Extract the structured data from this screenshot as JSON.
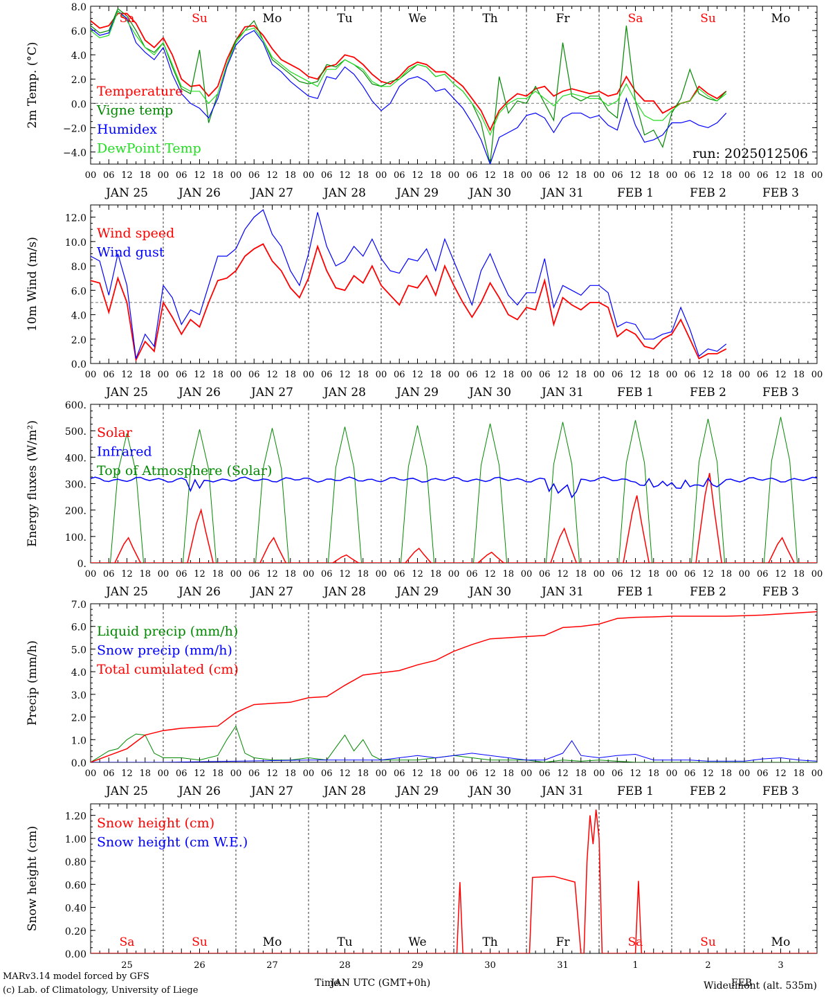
{
  "colors": {
    "red": "#ff0000",
    "green": "#008800",
    "blue": "#0000ff",
    "lightgreen": "#22dd22",
    "black": "#000000"
  },
  "days_of_week": [
    "Sa",
    "Su",
    "Mo",
    "Tu",
    "We",
    "Th",
    "Fr",
    "Sa",
    "Su",
    "Mo"
  ],
  "weekend_days": [
    "Sa",
    "Su"
  ],
  "date_labels": [
    "JAN 25",
    "JAN 26",
    "JAN 27",
    "JAN 28",
    "JAN 29",
    "JAN 30",
    "JAN 31",
    "FEB  1",
    "FEB  2",
    "FEB  3"
  ],
  "hour_ticks": [
    "00",
    "06",
    "12",
    "18"
  ],
  "last_hour_tick": "00",
  "run_label": "run: 2025012506",
  "footer": {
    "model": "MARv3.14 model forced by GFS",
    "copyright": "(c) Lab. of Climatology, University of Liege",
    "xlabel_time": "Time",
    "xlabel_utc": "JAN UTC (GMT+0h)",
    "xlabel_feb": "FEB",
    "station": "Wideumont (alt. 535m)",
    "day_numbers": [
      "25",
      "26",
      "27",
      "28",
      "29",
      "30",
      "31",
      "1",
      "2",
      "3"
    ]
  },
  "chart_data": [
    {
      "type": "line",
      "ylabel": "2m Temp. (°C)",
      "ylim": [
        -5,
        8
      ],
      "yticks": [
        "8.0",
        "6.0",
        "4.0",
        "2.0",
        "0.0",
        "−2.0",
        "−4.0"
      ],
      "ytick_values": [
        8,
        6,
        4,
        2,
        0,
        -2,
        -4
      ],
      "hline": 0,
      "x_hours": [
        0,
        3,
        6,
        9,
        12,
        15,
        18,
        21,
        24,
        27,
        30,
        33,
        36,
        39,
        42,
        45,
        48,
        51,
        54,
        57,
        60,
        63,
        66,
        69,
        72,
        75,
        78,
        81,
        84,
        87,
        90,
        93,
        96,
        99,
        102,
        105,
        108,
        111,
        114,
        117,
        120,
        123,
        126,
        129,
        132,
        135,
        138,
        141,
        144,
        147,
        150,
        153,
        156,
        159,
        162,
        165,
        168,
        171,
        174,
        177,
        180,
        183,
        186,
        189,
        192,
        195,
        198,
        201,
        204,
        207,
        210,
        213,
        216,
        219,
        222,
        225,
        228,
        231,
        234,
        237,
        240
      ],
      "legend": [
        "Temperature",
        "Vigne temp",
        "Humidex",
        "DewPoint Temp"
      ],
      "series": [
        {
          "name": "Temperature",
          "color": "red",
          "values": [
            6.8,
            6.2,
            6.4,
            7.4,
            7.4,
            6.6,
            5.2,
            4.6,
            5.4,
            4.0,
            2.0,
            1.4,
            1.5,
            0.6,
            1.4,
            3.6,
            5.2,
            6.3,
            6.4,
            5.6,
            4.5,
            3.6,
            3.2,
            2.8,
            2.2,
            2.0,
            3.0,
            3.2,
            4.0,
            3.8,
            3.2,
            2.4,
            1.8,
            1.6,
            2.2,
            3.0,
            3.4,
            3.2,
            2.6,
            2.6,
            2.0,
            1.4,
            0.4,
            -0.6,
            -2.2,
            -0.6,
            0.2,
            0.8,
            0.6,
            1.2,
            1.4,
            0.6,
            1.0,
            1.2,
            1.0,
            0.8,
            1.0,
            0.6,
            0.8,
            2.2,
            1.0,
            0.2,
            0.2,
            -0.8,
            -0.4,
            0.0,
            0.2,
            1.4,
            0.8,
            0.4,
            1.0
          ]
        },
        {
          "name": "Vigne temp",
          "color": "green",
          "values": [
            6.4,
            5.8,
            6.0,
            7.8,
            7.2,
            6.0,
            4.6,
            4.2,
            5.0,
            3.0,
            1.2,
            0.8,
            4.4,
            -1.6,
            0.8,
            3.2,
            5.2,
            6.0,
            6.8,
            5.2,
            3.6,
            3.0,
            2.4,
            1.8,
            1.6,
            1.8,
            3.2,
            3.0,
            3.6,
            3.2,
            2.6,
            1.6,
            1.4,
            1.8,
            2.0,
            2.6,
            3.2,
            3.0,
            2.2,
            2.4,
            1.6,
            1.0,
            0.0,
            -1.6,
            -5.0,
            2.2,
            -0.8,
            0.2,
            0.0,
            1.4,
            0.0,
            -1.4,
            5.0,
            0.6,
            0.2,
            0.6,
            0.6,
            -0.6,
            -1.2,
            6.4,
            0.2,
            -2.6,
            -2.2,
            -3.6,
            -0.8,
            0.4,
            2.8,
            0.8,
            0.4,
            0.2,
            1.0
          ]
        },
        {
          "name": "Humidex",
          "color": "blue",
          "values": [
            6.2,
            5.6,
            5.8,
            7.6,
            7.0,
            5.0,
            4.2,
            3.6,
            4.6,
            2.4,
            0.8,
            0.0,
            -0.4,
            -1.2,
            0.4,
            3.0,
            4.8,
            5.6,
            6.0,
            5.0,
            3.2,
            2.6,
            1.8,
            1.2,
            0.6,
            0.4,
            2.2,
            2.0,
            3.0,
            2.4,
            1.4,
            0.2,
            -0.6,
            0.0,
            1.4,
            2.0,
            2.2,
            1.8,
            1.0,
            1.2,
            0.4,
            -0.4,
            -1.6,
            -3.0,
            -5.0,
            -2.8,
            -2.4,
            -2.0,
            -1.0,
            -0.8,
            -1.2,
            -2.4,
            -1.2,
            -0.8,
            -0.8,
            -1.2,
            -1.0,
            -1.8,
            -2.2,
            0.4,
            -1.8,
            -3.2,
            -3.0,
            -2.6,
            -1.6,
            -1.6,
            -1.4,
            -1.8,
            -2.0,
            -1.6,
            -0.8
          ]
        },
        {
          "name": "DewPoint Temp",
          "color": "lightgreen",
          "values": [
            6.0,
            5.4,
            5.6,
            7.6,
            6.8,
            5.6,
            4.6,
            4.0,
            5.0,
            3.2,
            1.4,
            1.0,
            1.0,
            0.0,
            0.8,
            3.2,
            5.0,
            6.0,
            6.2,
            5.2,
            3.8,
            3.2,
            2.6,
            2.2,
            1.8,
            1.4,
            2.8,
            2.8,
            3.6,
            3.2,
            2.8,
            1.8,
            1.4,
            1.4,
            2.0,
            2.8,
            3.2,
            3.0,
            2.2,
            2.4,
            1.6,
            1.0,
            0.0,
            -1.0,
            -2.6,
            -0.8,
            0.0,
            0.4,
            0.4,
            1.0,
            0.4,
            -0.2,
            0.6,
            0.8,
            0.6,
            0.4,
            0.4,
            -0.2,
            0.2,
            1.6,
            0.2,
            -1.0,
            -1.4,
            -1.4,
            -0.6,
            0.0,
            0.2,
            1.2,
            0.6,
            0.2,
            0.8
          ]
        }
      ]
    },
    {
      "type": "line",
      "ylabel": "10m Wind (m/s)",
      "ylim": [
        0,
        13
      ],
      "yticks": [
        "12.0",
        "10.0",
        "8.0",
        "6.0",
        "4.0",
        "2.0",
        "0.0"
      ],
      "ytick_values": [
        12,
        10,
        8,
        6,
        4,
        2,
        0
      ],
      "hline": 5,
      "x_hours": [
        0,
        3,
        6,
        9,
        12,
        15,
        18,
        21,
        24,
        27,
        30,
        33,
        36,
        39,
        42,
        45,
        48,
        51,
        54,
        57,
        60,
        63,
        66,
        69,
        72,
        75,
        78,
        81,
        84,
        87,
        90,
        93,
        96,
        99,
        102,
        105,
        108,
        111,
        114,
        117,
        120,
        123,
        126,
        129,
        132,
        135,
        138,
        141,
        144,
        147,
        150,
        153,
        156,
        159,
        162,
        165,
        168,
        171,
        174,
        177,
        180,
        183,
        186,
        189,
        192,
        195,
        198,
        201,
        204,
        207,
        210,
        213,
        216,
        219,
        222,
        225,
        228,
        231,
        234,
        237,
        240
      ],
      "legend": [
        "Wind speed",
        "Wind gust"
      ],
      "series": [
        {
          "name": "Wind speed",
          "color": "red",
          "values": [
            6.8,
            6.6,
            4.2,
            7.0,
            5.0,
            0.3,
            1.8,
            1.0,
            5.0,
            3.8,
            2.4,
            3.6,
            3.0,
            5.0,
            6.8,
            7.0,
            7.6,
            8.8,
            9.4,
            9.8,
            8.4,
            7.6,
            6.2,
            5.4,
            7.0,
            9.6,
            7.6,
            6.2,
            6.0,
            7.2,
            6.6,
            8.0,
            6.4,
            5.6,
            4.8,
            6.4,
            6.2,
            7.2,
            5.6,
            8.0,
            6.4,
            5.0,
            3.8,
            5.0,
            6.6,
            5.4,
            4.0,
            3.6,
            4.6,
            4.4,
            6.8,
            3.2,
            5.4,
            4.8,
            4.4,
            5.0,
            5.0,
            4.6,
            2.2,
            2.8,
            2.4,
            1.4,
            1.2,
            2.0,
            2.4,
            3.6,
            2.0,
            0.4,
            0.8,
            0.8,
            1.2
          ]
        },
        {
          "name": "Wind gust",
          "color": "blue",
          "values": [
            8.8,
            8.4,
            5.6,
            9.0,
            6.4,
            0.4,
            2.4,
            1.4,
            6.4,
            5.4,
            3.2,
            4.4,
            4.0,
            6.4,
            8.8,
            8.8,
            9.4,
            11.0,
            12.0,
            12.6,
            10.6,
            9.6,
            7.6,
            6.4,
            9.0,
            12.4,
            9.6,
            8.0,
            8.4,
            9.6,
            8.8,
            10.2,
            8.6,
            7.6,
            7.4,
            8.6,
            8.4,
            9.4,
            7.6,
            10.2,
            8.4,
            6.6,
            4.8,
            7.6,
            9.0,
            7.2,
            5.6,
            4.8,
            5.8,
            5.8,
            8.6,
            4.6,
            6.4,
            6.0,
            5.6,
            6.4,
            6.4,
            5.8,
            3.0,
            3.4,
            3.2,
            2.0,
            2.0,
            2.4,
            2.6,
            4.6,
            2.8,
            0.6,
            1.2,
            1.0,
            1.6
          ]
        }
      ]
    },
    {
      "type": "line",
      "ylabel": "Energy fluxes (W/m²)",
      "ylim": [
        0,
        600
      ],
      "yticks": [
        "600.",
        "500.",
        "400.",
        "300.",
        "200.",
        "100.",
        "0."
      ],
      "ytick_values": [
        600,
        500,
        400,
        300,
        200,
        100,
        0
      ],
      "legend": [
        "Solar",
        "Infrared",
        "Top of Atmosphere (Solar)"
      ],
      "toa_peaks": [
        490,
        505,
        510,
        515,
        520,
        527,
        533,
        540,
        545,
        552
      ],
      "solar_peaks": [
        95,
        200,
        95,
        30,
        55,
        40,
        130,
        255,
        340,
        95
      ],
      "infrared_base": 315
    },
    {
      "type": "line",
      "ylabel": "Precip (mm/h)",
      "ylim": [
        0,
        7
      ],
      "yticks": [
        "7.0",
        "6.0",
        "5.0",
        "4.0",
        "3.0",
        "2.0",
        "1.0",
        "0.0"
      ],
      "ytick_values": [
        7,
        6,
        5,
        4,
        3,
        2,
        1,
        0
      ],
      "legend": [
        "Liquid precip (mm/h)",
        "Snow precip (mm/h)",
        "Total cumulated (cm)"
      ],
      "cumulated": {
        "x_hours": [
          0,
          6,
          12,
          18,
          24,
          30,
          36,
          42,
          48,
          54,
          60,
          66,
          72,
          78,
          84,
          90,
          96,
          102,
          108,
          114,
          120,
          126,
          132,
          138,
          144,
          150,
          156,
          162,
          168,
          174,
          180,
          186,
          192,
          198,
          204,
          210,
          216,
          222,
          228,
          234,
          240
        ],
        "values": [
          0.0,
          0.3,
          0.6,
          1.2,
          1.4,
          1.5,
          1.55,
          1.6,
          2.2,
          2.55,
          2.6,
          2.65,
          2.85,
          2.9,
          3.4,
          3.85,
          3.95,
          4.05,
          4.3,
          4.5,
          4.9,
          5.2,
          5.45,
          5.5,
          5.55,
          5.6,
          5.95,
          6.0,
          6.1,
          6.35,
          6.4,
          6.42,
          6.45,
          6.45,
          6.45,
          6.45,
          6.47,
          6.5,
          6.55,
          6.6,
          6.65
        ]
      },
      "liquid": {
        "x_hours": [
          0,
          6,
          9,
          12,
          15,
          18,
          21,
          24,
          30,
          36,
          42,
          45,
          48,
          51,
          54,
          60,
          66,
          72,
          78,
          84,
          87,
          90,
          93,
          96,
          102,
          108,
          114,
          120,
          126,
          132,
          138,
          144,
          150,
          156,
          162,
          168,
          174,
          180,
          186,
          192,
          198,
          204,
          210,
          216,
          222,
          228,
          234,
          240
        ],
        "values": [
          0.0,
          0.5,
          0.6,
          1.0,
          1.25,
          1.2,
          0.4,
          0.2,
          0.2,
          0.1,
          0.3,
          1.0,
          1.6,
          0.4,
          0.2,
          0.1,
          0.1,
          0.2,
          0.1,
          1.2,
          0.5,
          1.0,
          0.3,
          0.1,
          0.1,
          0.1,
          0.2,
          0.3,
          0.2,
          0.1,
          0.1,
          0.1,
          0.0,
          0.1,
          0.05,
          0.1,
          0.05,
          0.0,
          0.0,
          0.0,
          0.0,
          0.0,
          0.0,
          0.0,
          0.0,
          0.0,
          0.0,
          0.0
        ]
      },
      "snow": {
        "x_hours": [
          0,
          24,
          48,
          72,
          96,
          102,
          108,
          114,
          120,
          126,
          132,
          138,
          144,
          150,
          156,
          159,
          162,
          168,
          174,
          180,
          186,
          192,
          198,
          204,
          210,
          216,
          222,
          228,
          234,
          240
        ],
        "values": [
          0.0,
          0.0,
          0.05,
          0.1,
          0.1,
          0.2,
          0.3,
          0.2,
          0.3,
          0.4,
          0.3,
          0.2,
          0.1,
          0.1,
          0.4,
          0.95,
          0.3,
          0.2,
          0.3,
          0.35,
          0.1,
          0.1,
          0.1,
          0.05,
          0.05,
          0.05,
          0.15,
          0.2,
          0.1,
          0.05
        ]
      }
    },
    {
      "type": "line",
      "ylabel": "Snow height (cm)",
      "ylim": [
        0,
        1.3
      ],
      "yticks": [
        "1.20",
        "1.00",
        "0.80",
        "0.60",
        "0.40",
        "0.20",
        "0.00"
      ],
      "ytick_values": [
        1.2,
        1.0,
        0.8,
        0.6,
        0.4,
        0.2,
        0.0
      ],
      "legend": [
        "Snow height (cm)",
        "Snow height (cm W.E.)"
      ],
      "snow_height": {
        "x_hours": [
          0,
          121,
          122,
          123,
          124,
          145,
          146,
          153,
          160,
          162,
          163,
          164,
          165,
          166,
          167,
          168,
          169,
          180,
          181,
          182,
          183,
          240
        ],
        "values": [
          0.0,
          0.0,
          0.62,
          0.0,
          0.0,
          0.0,
          0.66,
          0.67,
          0.62,
          0.0,
          0.0,
          0.8,
          1.2,
          0.95,
          1.25,
          1.0,
          0.0,
          0.0,
          0.63,
          0.0,
          0.0,
          0.0
        ]
      }
    }
  ]
}
